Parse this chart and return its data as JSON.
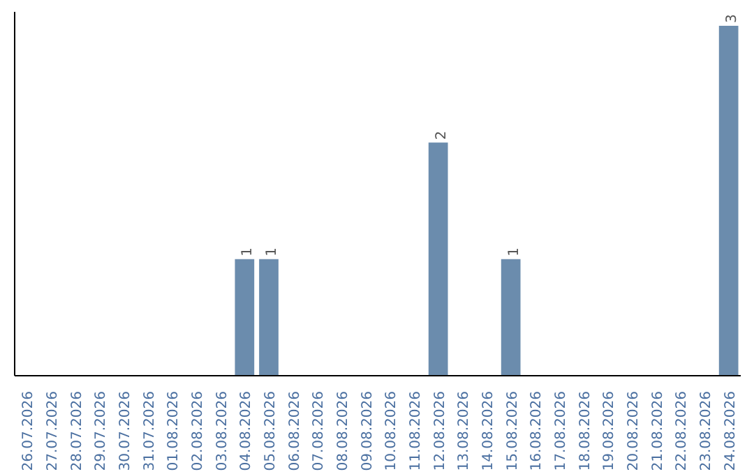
{
  "chart_data": {
    "type": "bar",
    "categories": [
      "26.07.2026",
      "27.07.2026",
      "28.07.2026",
      "29.07.2026",
      "30.07.2026",
      "31.07.2026",
      "01.08.2026",
      "02.08.2026",
      "03.08.2026",
      "04.08.2026",
      "05.08.2026",
      "06.08.2026",
      "07.08.2026",
      "08.08.2026",
      "09.08.2026",
      "10.08.2026",
      "11.08.2026",
      "12.08.2026",
      "13.08.2026",
      "14.08.2026",
      "15.08.2026",
      "16.08.2026",
      "17.08.2026",
      "18.08.2026",
      "19.08.2026",
      "20.08.2026",
      "21.08.2026",
      "22.08.2026",
      "23.08.2026",
      "24.08.2026"
    ],
    "values": [
      0,
      0,
      0,
      0,
      0,
      0,
      0,
      0,
      0,
      1,
      1,
      0,
      0,
      0,
      0,
      0,
      0,
      2,
      0,
      0,
      1,
      0,
      0,
      0,
      0,
      0,
      0,
      0,
      0,
      3
    ],
    "value_labels": [
      null,
      null,
      null,
      null,
      null,
      null,
      null,
      null,
      null,
      "1",
      "1",
      null,
      null,
      null,
      null,
      null,
      null,
      "2",
      null,
      null,
      "1",
      null,
      null,
      null,
      null,
      null,
      null,
      null,
      null,
      "3"
    ],
    "color": "#6b8cad",
    "grid": false,
    "tick_labels": "x"
  }
}
